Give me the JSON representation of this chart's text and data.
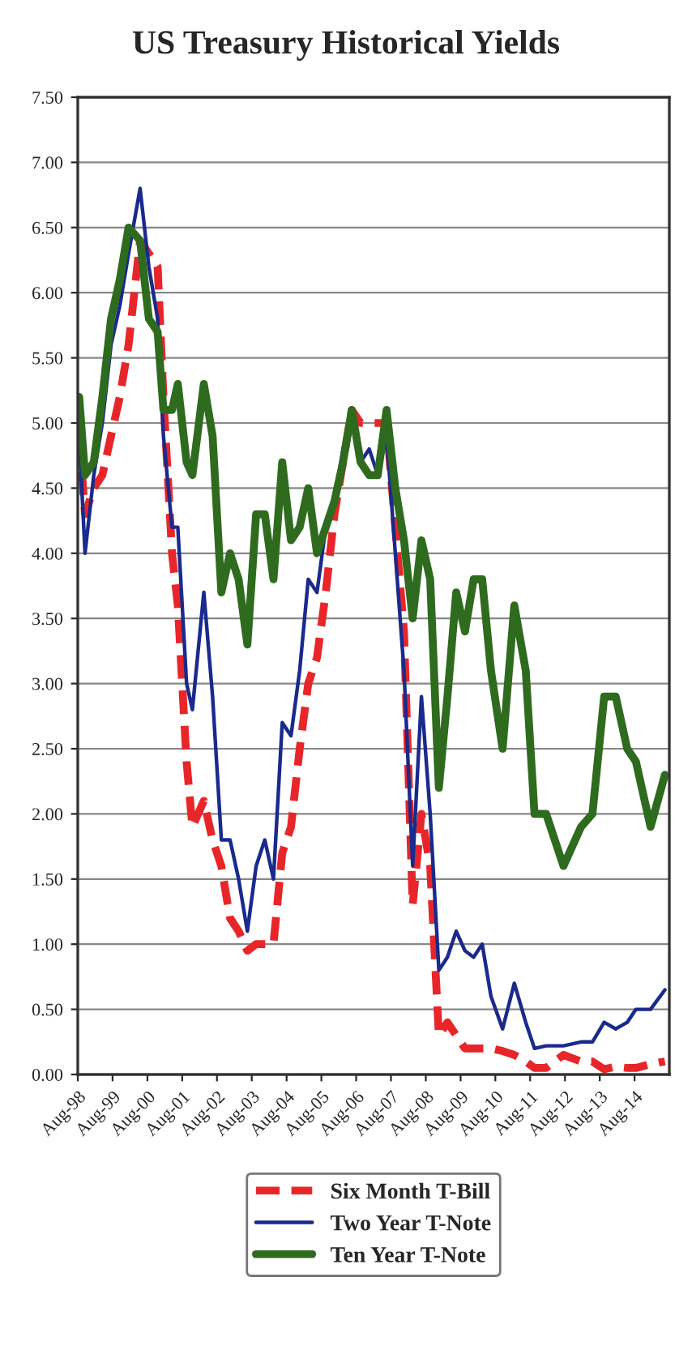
{
  "chart_data": {
    "type": "line",
    "title": "US Treasury Historical Yields",
    "x": [
      "1998-08",
      "1998-10",
      "1999-01",
      "1999-04",
      "1999-07",
      "1999-10",
      "2000-01",
      "2000-05",
      "2000-08",
      "2000-11",
      "2001-01",
      "2001-04",
      "2001-06",
      "2001-09",
      "2001-11",
      "2002-03",
      "2002-06",
      "2002-09",
      "2002-12",
      "2003-03",
      "2003-06",
      "2003-09",
      "2003-12",
      "2004-03",
      "2004-06",
      "2004-09",
      "2004-12",
      "2005-03",
      "2005-06",
      "2005-09",
      "2005-12",
      "2006-03",
      "2006-06",
      "2006-09",
      "2006-12",
      "2007-03",
      "2007-06",
      "2007-09",
      "2007-12",
      "2008-03",
      "2008-06",
      "2008-09",
      "2008-12",
      "2009-03",
      "2009-06",
      "2009-09",
      "2009-12",
      "2010-03",
      "2010-06",
      "2010-10",
      "2011-02",
      "2011-06",
      "2011-09",
      "2012-01",
      "2012-07",
      "2013-01",
      "2013-05",
      "2013-09",
      "2014-01",
      "2014-05",
      "2014-08",
      "2015-01",
      "2015-06"
    ],
    "series": [
      {
        "name": "Six Month T-Bill",
        "color": "#e8262a",
        "line_style": "dashed",
        "values": [
          4.9,
          4.3,
          4.5,
          4.6,
          4.9,
          5.2,
          5.6,
          6.4,
          6.3,
          6.2,
          5.2,
          4.0,
          3.6,
          2.4,
          1.9,
          2.1,
          1.8,
          1.6,
          1.2,
          1.1,
          0.95,
          1.0,
          1.0,
          1.0,
          1.7,
          1.9,
          2.5,
          3.0,
          3.2,
          3.7,
          4.3,
          4.7,
          5.1,
          5.0,
          5.0,
          5.0,
          5.0,
          4.2,
          3.4,
          1.3,
          2.0,
          1.6,
          0.3,
          0.4,
          0.3,
          0.2,
          0.2,
          0.2,
          0.2,
          0.18,
          0.15,
          0.1,
          0.05,
          0.05,
          0.15,
          0.1,
          0.1,
          0.04,
          0.06,
          0.05,
          0.05,
          0.08,
          0.1
        ]
      },
      {
        "name": "Two Year T-Note",
        "color": "#1a2a8c",
        "line_style": "solid",
        "values": [
          4.9,
          4.0,
          4.6,
          5.0,
          5.6,
          5.9,
          6.3,
          6.8,
          6.2,
          5.8,
          4.9,
          4.2,
          4.2,
          3.0,
          2.8,
          3.7,
          2.9,
          1.8,
          1.8,
          1.5,
          1.1,
          1.6,
          1.8,
          1.5,
          2.7,
          2.6,
          3.1,
          3.8,
          3.7,
          4.2,
          4.4,
          4.8,
          5.1,
          4.7,
          4.8,
          4.6,
          4.9,
          4.0,
          3.1,
          1.6,
          2.9,
          2.0,
          0.8,
          0.9,
          1.1,
          0.95,
          0.9,
          1.0,
          0.6,
          0.35,
          0.7,
          0.4,
          0.2,
          0.22,
          0.22,
          0.25,
          0.25,
          0.4,
          0.35,
          0.4,
          0.5,
          0.5,
          0.65
        ]
      },
      {
        "name": "Ten Year T-Note",
        "color": "#2e6b1e",
        "line_style": "solid",
        "values": [
          5.2,
          4.6,
          4.7,
          5.2,
          5.8,
          6.1,
          6.5,
          6.4,
          5.8,
          5.7,
          5.1,
          5.1,
          5.3,
          4.7,
          4.6,
          5.3,
          4.9,
          3.7,
          4.0,
          3.8,
          3.3,
          4.3,
          4.3,
          3.8,
          4.7,
          4.1,
          4.2,
          4.5,
          4.0,
          4.2,
          4.4,
          4.7,
          5.1,
          4.7,
          4.6,
          4.6,
          5.1,
          4.5,
          4.1,
          3.5,
          4.1,
          3.8,
          2.2,
          2.9,
          3.7,
          3.4,
          3.8,
          3.8,
          3.1,
          2.5,
          3.6,
          3.1,
          2.0,
          2.0,
          1.6,
          1.9,
          2.0,
          2.9,
          2.9,
          2.5,
          2.4,
          1.9,
          2.3
        ]
      }
    ],
    "xlim": [
      "1998-08-01",
      "2015-08-01"
    ],
    "xticks": [
      {
        "value": "1998-08-01",
        "label": "Aug-98"
      },
      {
        "value": "1999-08-01",
        "label": "Aug-99"
      },
      {
        "value": "2000-08-01",
        "label": "Aug-00"
      },
      {
        "value": "2001-08-01",
        "label": "Aug-01"
      },
      {
        "value": "2002-08-01",
        "label": "Aug-02"
      },
      {
        "value": "2003-08-01",
        "label": "Aug-03"
      },
      {
        "value": "2004-08-01",
        "label": "Aug-04"
      },
      {
        "value": "2005-08-01",
        "label": "Aug-05"
      },
      {
        "value": "2006-08-01",
        "label": "Aug-06"
      },
      {
        "value": "2007-08-01",
        "label": "Aug-07"
      },
      {
        "value": "2008-08-01",
        "label": "Aug-08"
      },
      {
        "value": "2009-08-01",
        "label": "Aug-09"
      },
      {
        "value": "2010-08-01",
        "label": "Aug-10"
      },
      {
        "value": "2011-08-01",
        "label": "Aug-11"
      },
      {
        "value": "2012-08-01",
        "label": "Aug-12"
      },
      {
        "value": "2013-08-01",
        "label": "Aug-13"
      },
      {
        "value": "2014-08-01",
        "label": "Aug-14"
      }
    ],
    "ylim": [
      0,
      7.5
    ],
    "yticks": [
      {
        "value": 0,
        "label": "0.00"
      },
      {
        "value": 0.5,
        "label": "0.50"
      },
      {
        "value": 1,
        "label": "1.00"
      },
      {
        "value": 1.5,
        "label": "1.50"
      },
      {
        "value": 2,
        "label": "2.00"
      },
      {
        "value": 2.5,
        "label": "2.50"
      },
      {
        "value": 3,
        "label": "3.00"
      },
      {
        "value": 3.5,
        "label": "3.50"
      },
      {
        "value": 4,
        "label": "4.00"
      },
      {
        "value": 4.5,
        "label": "4.50"
      },
      {
        "value": 5,
        "label": "5.00"
      },
      {
        "value": 5.5,
        "label": "5.50"
      },
      {
        "value": 6,
        "label": "6.00"
      },
      {
        "value": 6.5,
        "label": "6.50"
      },
      {
        "value": 7,
        "label": "7.00"
      },
      {
        "value": 7.5,
        "label": "7.50"
      }
    ],
    "grid": "y",
    "legend": "bottom"
  }
}
